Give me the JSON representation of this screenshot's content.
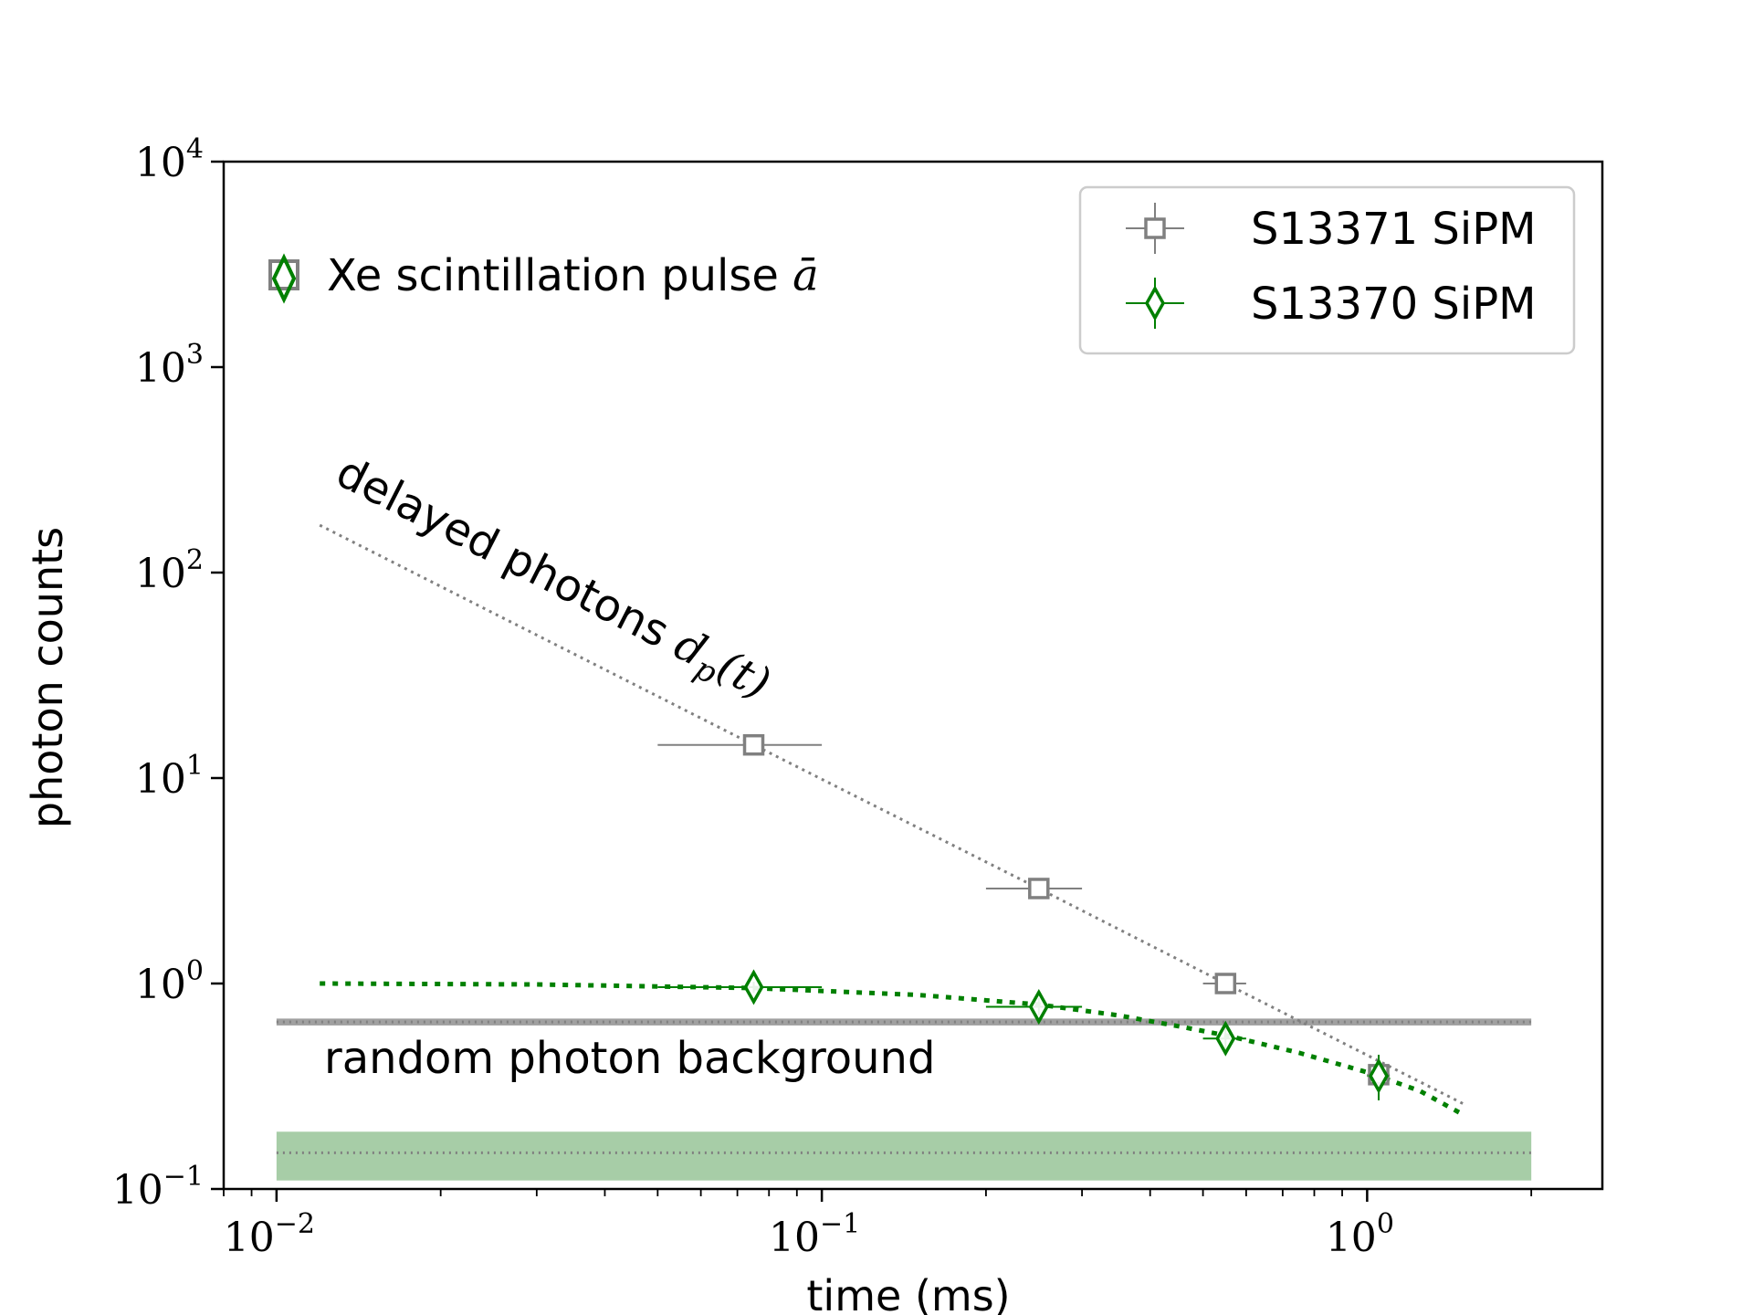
{
  "chart_data": {
    "type": "scatter",
    "xlabel": "time (ms)",
    "ylabel": "photon counts",
    "xscale": "log",
    "yscale": "log",
    "xlim": [
      0.008,
      2.7
    ],
    "ylim": [
      0.1,
      10000
    ],
    "xticks": [
      {
        "value": 0.01,
        "base": "10",
        "exp": "−2"
      },
      {
        "value": 0.1,
        "base": "10",
        "exp": "−1"
      },
      {
        "value": 1,
        "base": "10",
        "exp": "0"
      }
    ],
    "yticks": [
      {
        "value": 0.1,
        "base": "10",
        "exp": "−1"
      },
      {
        "value": 1,
        "base": "10",
        "exp": "0"
      },
      {
        "value": 10,
        "base": "10",
        "exp": "1"
      },
      {
        "value": 100,
        "base": "10",
        "exp": "2"
      },
      {
        "value": 1000,
        "base": "10",
        "exp": "3"
      },
      {
        "value": 10000,
        "base": "10",
        "exp": "4"
      }
    ],
    "legend_position": "top-right",
    "series": [
      {
        "name": "S13371 SiPM",
        "marker": "square",
        "color": "#808080",
        "points": [
          {
            "x": 0.075,
            "y": 14.5,
            "xerr": [
              0.05,
              0.1
            ],
            "yerr": [
              14.2,
              14.8
            ]
          },
          {
            "x": 0.25,
            "y": 2.9,
            "xerr": [
              0.2,
              0.3
            ],
            "yerr": [
              2.85,
              2.95
            ]
          },
          {
            "x": 0.55,
            "y": 1.0,
            "xerr": [
              0.5,
              0.6
            ],
            "yerr": [
              0.97,
              1.03
            ]
          },
          {
            "x": 1.05,
            "y": 0.36,
            "xerr": [
              1.0,
              1.1
            ],
            "yerr": [
              0.34,
              0.38
            ]
          }
        ]
      },
      {
        "name": "S13370 SiPM",
        "marker": "diamond",
        "color": "#008000",
        "points": [
          {
            "x": 0.075,
            "y": 0.96,
            "xerr": [
              0.05,
              0.1
            ],
            "yerr": [
              0.9,
              1.02
            ]
          },
          {
            "x": 0.25,
            "y": 0.77,
            "xerr": [
              0.2,
              0.3
            ],
            "yerr": [
              0.7,
              0.85
            ]
          },
          {
            "x": 0.55,
            "y": 0.54,
            "xerr": [
              0.5,
              0.6
            ],
            "yerr": [
              0.46,
              0.63
            ]
          },
          {
            "x": 1.05,
            "y": 0.355,
            "xerr": [
              1.0,
              1.1
            ],
            "yerr": [
              0.27,
              0.45
            ]
          }
        ]
      }
    ],
    "curves": [
      {
        "name": "delayed photons",
        "color": "#808080",
        "style": "dotted",
        "points": [
          {
            "x": 0.012,
            "y": 170
          },
          {
            "x": 0.075,
            "y": 14.5
          },
          {
            "x": 0.25,
            "y": 2.9
          },
          {
            "x": 0.55,
            "y": 1.0
          },
          {
            "x": 1.5,
            "y": 0.26
          }
        ]
      },
      {
        "name": "S13370 fit",
        "color": "#008000",
        "style": "dotted-thick",
        "points": [
          {
            "x": 0.012,
            "y": 1.0
          },
          {
            "x": 0.03,
            "y": 0.99
          },
          {
            "x": 0.075,
            "y": 0.95
          },
          {
            "x": 0.15,
            "y": 0.88
          },
          {
            "x": 0.25,
            "y": 0.79
          },
          {
            "x": 0.35,
            "y": 0.7
          },
          {
            "x": 0.45,
            "y": 0.62
          },
          {
            "x": 0.55,
            "y": 0.56
          },
          {
            "x": 0.75,
            "y": 0.46
          },
          {
            "x": 1.0,
            "y": 0.37
          },
          {
            "x": 1.25,
            "y": 0.3
          },
          {
            "x": 1.5,
            "y": 0.23
          }
        ]
      }
    ],
    "bands": [
      {
        "name": "S13371 background",
        "color": "#808080",
        "opacity": 0.75,
        "x": [
          0.01,
          2.0
        ],
        "y": 0.65,
        "low": 0.625,
        "high": 0.675
      },
      {
        "name": "S13370 background",
        "color": "#4f9b4f",
        "opacity": 0.5,
        "x": [
          0.01,
          2.0
        ],
        "y": 0.15,
        "low": 0.11,
        "high": 0.19
      }
    ],
    "annotations": {
      "delayed_text": "delayed photons ",
      "delayed_math": "d",
      "delayed_sub": "p",
      "delayed_arg": "(t)",
      "background_text": "random photon background",
      "pulse_text": "Xe scintillation pulse ",
      "pulse_math": "ā"
    }
  }
}
